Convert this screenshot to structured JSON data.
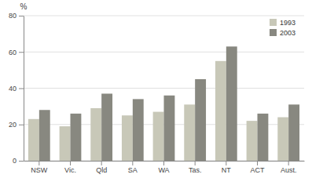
{
  "chart_data": {
    "type": "bar",
    "ylabel": "%",
    "categories": [
      "NSW",
      "Vic.",
      "Qld",
      "SA",
      "WA",
      "Tas.",
      "NT",
      "ACT",
      "Aust."
    ],
    "series": [
      {
        "name": "1993",
        "color": "#c8c8b8",
        "values": [
          23,
          19,
          29,
          25,
          27,
          31,
          55,
          22,
          24
        ]
      },
      {
        "name": "2003",
        "color": "#888880",
        "values": [
          28,
          26,
          37,
          34,
          36,
          45,
          63,
          26,
          31
        ]
      }
    ],
    "ylim": [
      0,
      80
    ],
    "yticks": [
      0,
      20,
      40,
      60,
      80
    ],
    "grid": true,
    "legend": "upper right"
  }
}
